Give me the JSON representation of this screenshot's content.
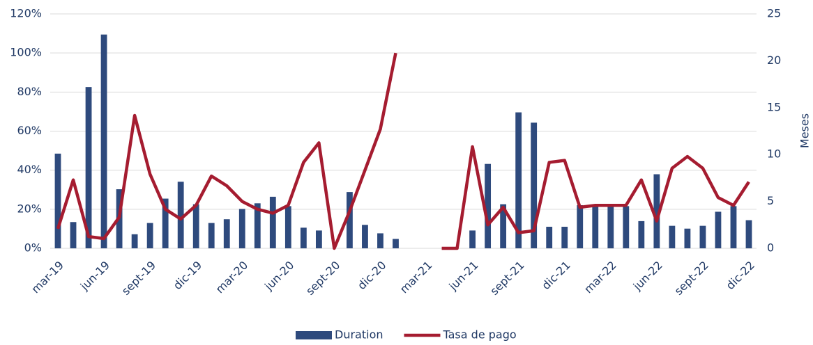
{
  "chart_data": {
    "type": "bar_line",
    "categories": [
      "mar-19",
      null,
      null,
      "jun-19",
      null,
      null,
      "sept-19",
      null,
      null,
      "dic-19",
      null,
      null,
      "mar-20",
      null,
      null,
      "jun-20",
      null,
      null,
      "sept-20",
      null,
      null,
      "dic-20",
      null,
      null,
      "mar-21",
      null,
      null,
      "jun-21",
      null,
      null,
      "sept-21",
      null,
      null,
      "dic-21",
      null,
      null,
      "mar-22",
      null,
      null,
      "jun-22",
      null,
      null,
      "sept-22",
      null,
      null,
      "dic-22"
    ],
    "series": [
      {
        "name": "Duration",
        "type": "bar",
        "axis": "y2",
        "color": "#2e4a7d",
        "values": [
          10.1,
          2.8,
          17.2,
          22.8,
          6.3,
          1.5,
          2.7,
          5.3,
          7.1,
          4.7,
          2.7,
          3.1,
          4.2,
          4.8,
          5.5,
          4.5,
          2.2,
          1.9,
          0,
          6.0,
          2.5,
          1.6,
          1.0,
          null,
          null,
          null,
          null,
          1.9,
          9.0,
          4.7,
          14.5,
          13.4,
          2.3,
          2.3,
          4.6,
          4.6,
          4.7,
          4.5,
          2.9,
          7.9,
          2.4,
          2.1,
          2.4,
          3.9,
          4.5,
          3.0
        ]
      },
      {
        "name": "Tasa de pago",
        "type": "line",
        "axis": "y",
        "color": "#a51c30",
        "values": [
          10,
          35,
          6,
          5,
          16,
          68,
          38,
          20,
          15,
          22,
          37,
          32,
          24,
          20,
          18,
          22,
          44,
          54,
          0,
          19,
          40,
          61,
          100,
          null,
          null,
          0,
          0,
          52,
          12,
          21,
          8,
          9,
          44,
          45,
          21,
          22,
          22,
          22,
          35,
          14,
          41,
          47,
          41,
          26,
          22,
          34
        ]
      }
    ],
    "ylim": [
      0,
      120
    ],
    "yticks": [
      {
        "value": 0,
        "label": "0%"
      },
      {
        "value": 20,
        "label": "20%"
      },
      {
        "value": 40,
        "label": "40%"
      },
      {
        "value": 60,
        "label": "60%"
      },
      {
        "value": 80,
        "label": "80%"
      },
      {
        "value": 100,
        "label": "100%"
      },
      {
        "value": 120,
        "label": "120%"
      }
    ],
    "y2lim": [
      0,
      25
    ],
    "y2ticks": [
      0,
      5,
      10,
      15,
      20,
      25
    ],
    "y2label": "Meses",
    "grid": true
  }
}
